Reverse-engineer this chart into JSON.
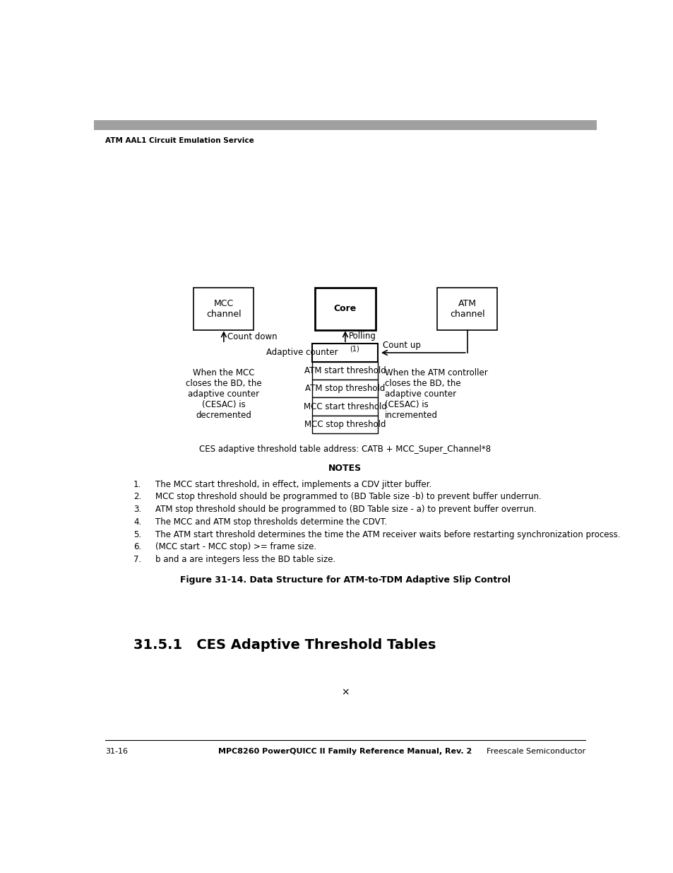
{
  "page_width": 9.54,
  "page_height": 12.35,
  "bg_color": "#ffffff",
  "header_bar_color": "#a0a0a0",
  "header_text": "ATM AAL1 Circuit Emulation Service",
  "footer_left": "31-16",
  "footer_center": "MPC8260 PowerQUICC II Family Reference Manual, Rev. 2",
  "footer_right": "Freescale Semiconductor",
  "section_title": "31.5.1   CES Adaptive Threshold Tables",
  "figure_caption": "Figure 31-14. Data Structure for ATM-to-TDM Adaptive Slip Control",
  "address_line": "CES adaptive threshold table address: CATB + MCC_Super_Channel*8",
  "notes_title": "NOTES",
  "notes": [
    "The MCC start threshold, in effect, implements a CDV jitter buffer.",
    "MCC stop threshold should be programmed to (BD Table size -b) to prevent buffer underrun.",
    "ATM stop threshold should be programmed to (BD Table size - a) to prevent buffer overrun.",
    "The MCC and ATM stop thresholds determine the CDVT.",
    "The ATM start threshold determines the time the ATM receiver waits before restarting synchronization process.",
    "(MCC start - MCC stop) >= frame size.",
    "b and a are integers less the BD table size."
  ],
  "cross_symbol": "×",
  "diagram": {
    "mcc_box_label": "MCC\nchannel",
    "core_box_label": "Core",
    "atm_box_label": "ATM\nchannel",
    "table_rows": [
      "ATM start threshold",
      "ATM stop threshold",
      "MCC start threshold",
      "MCC stop threshold"
    ],
    "count_down_label": "Count down",
    "count_up_label": "Count up",
    "polling_label": "Polling",
    "mcc_note": "When the MCC\ncloses the BD, the\nadaptive counter\n(CESAC) is\ndecremented",
    "atm_note": "When the ATM controller\ncloses the BD, the\nadaptive counter\n(CESAC) is\nincremented"
  }
}
